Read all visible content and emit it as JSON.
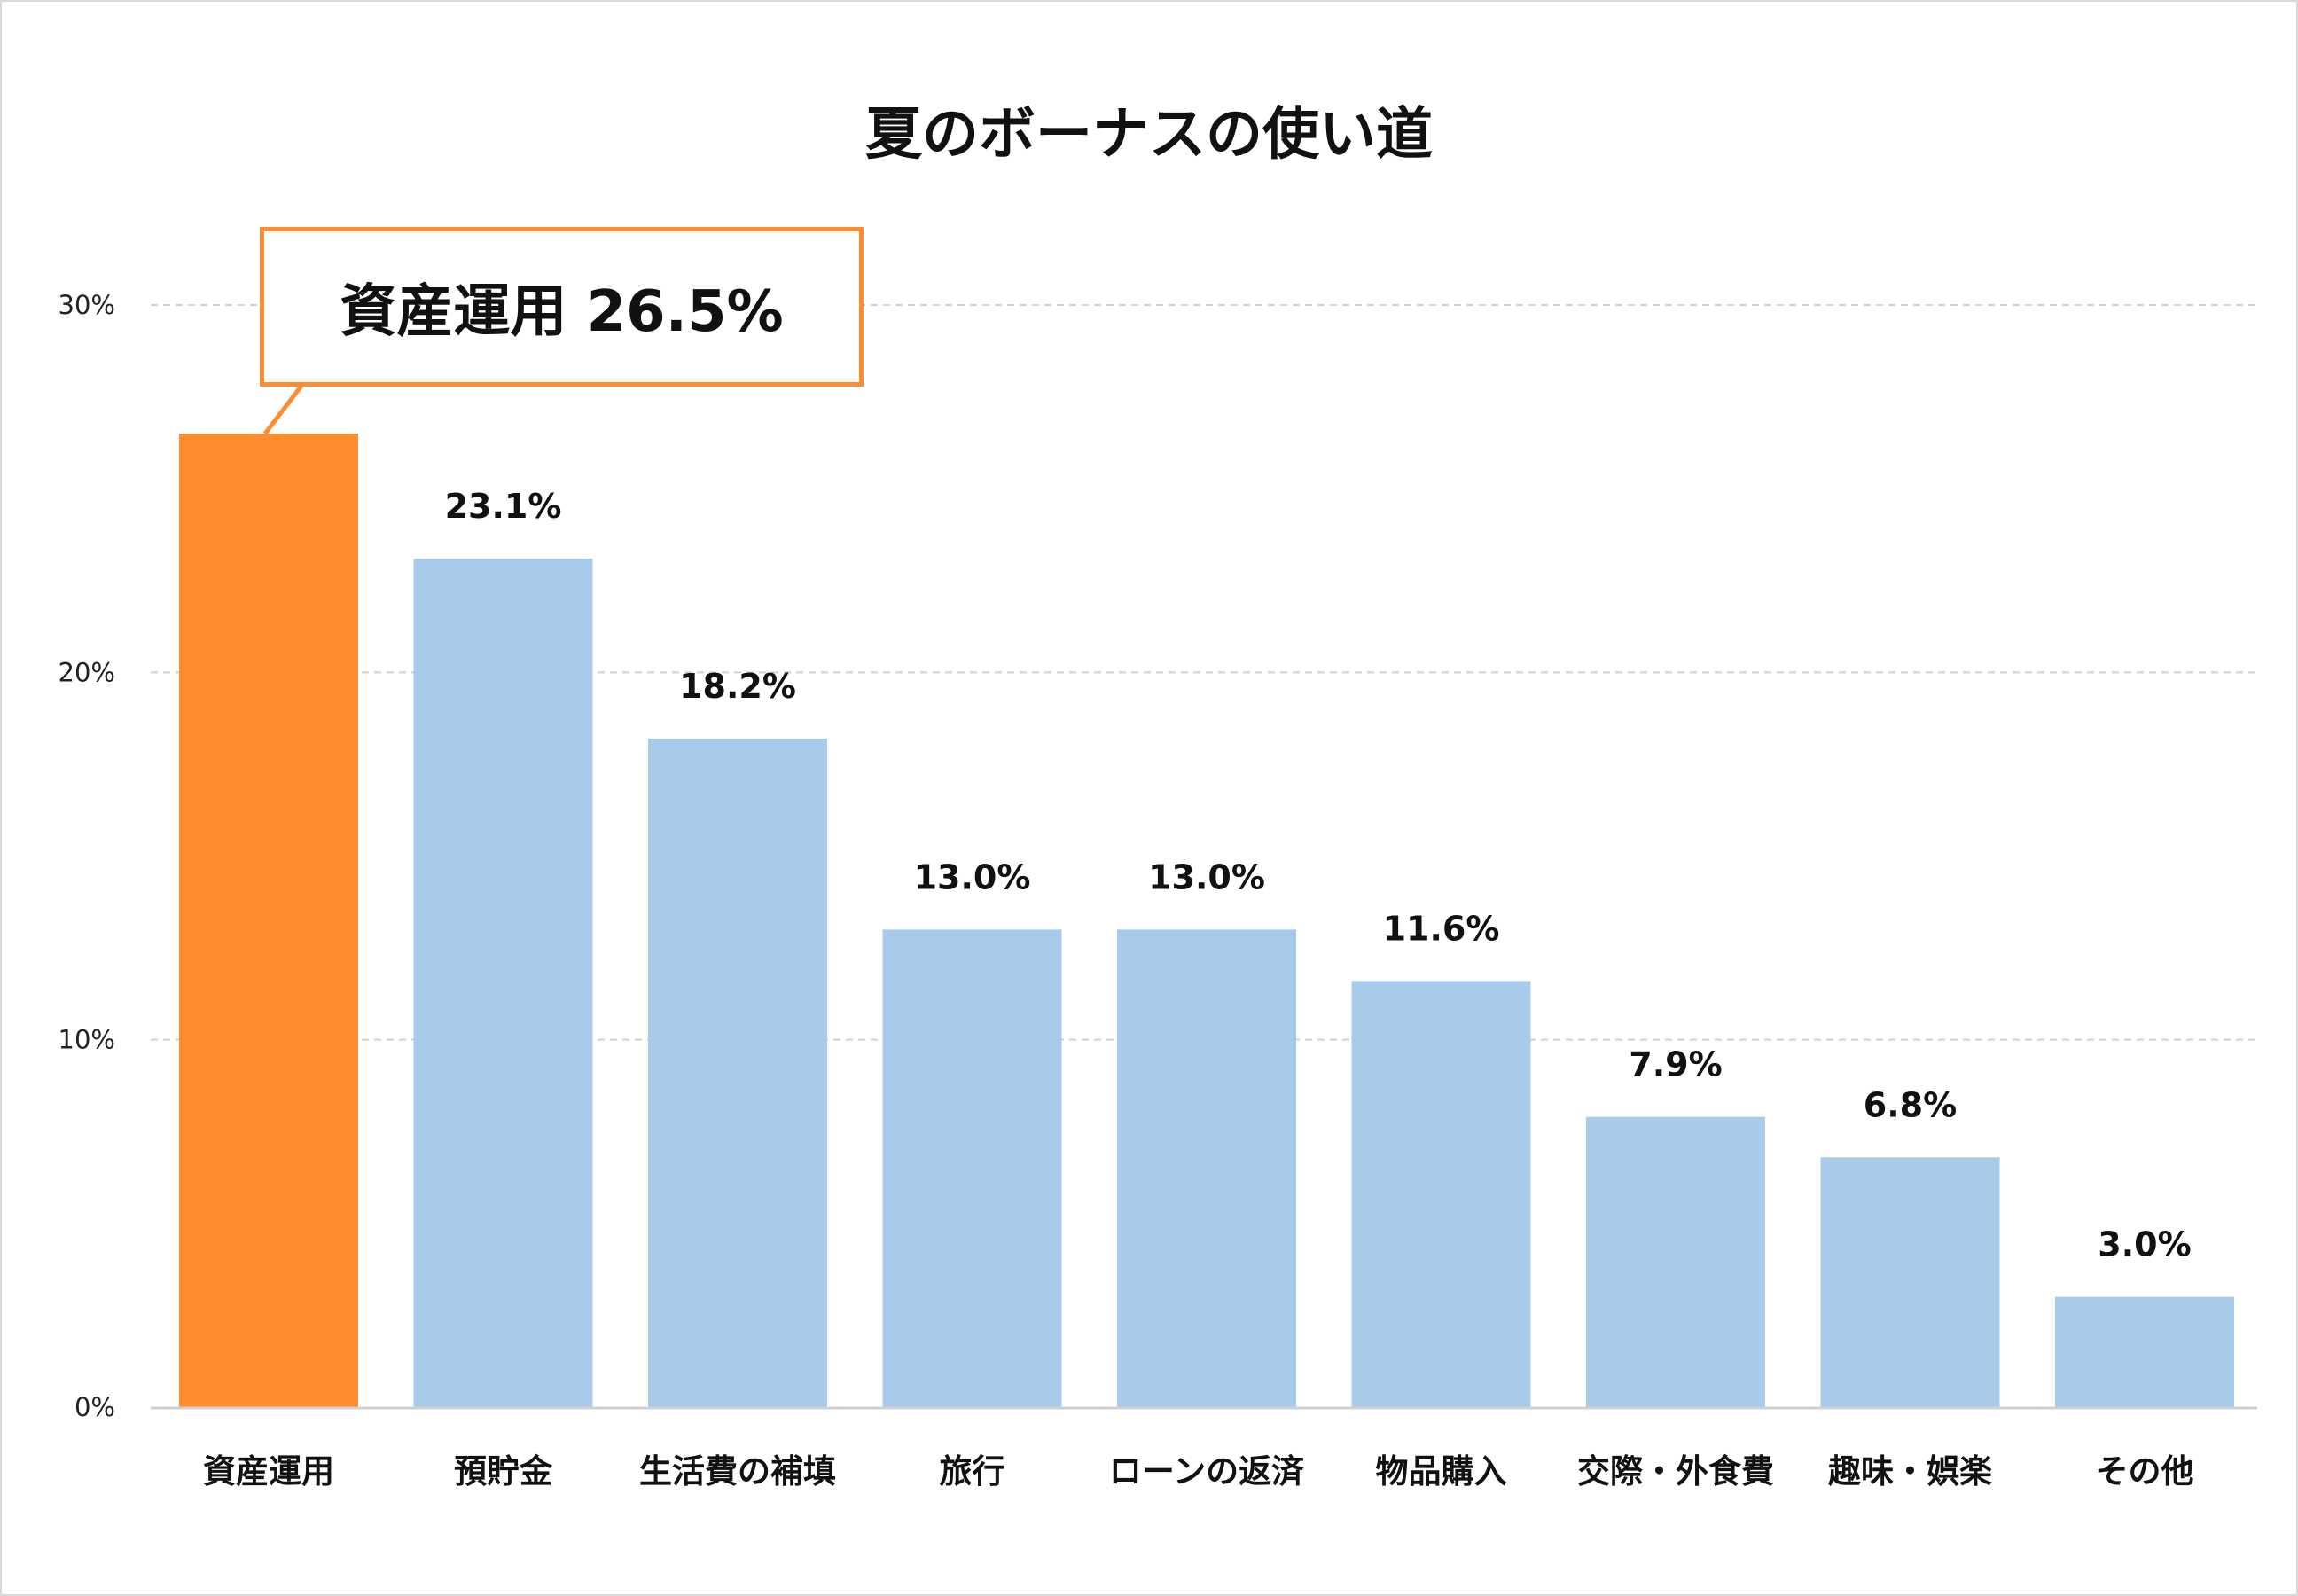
{
  "chart_data": {
    "type": "bar",
    "title": "夏のボーナスの使い道",
    "categories": [
      "資産運用",
      "預貯金",
      "生活費の補填",
      "旅行",
      "ローンの返済",
      "物品購入",
      "交際・外食費",
      "趣味・娯楽",
      "その他"
    ],
    "values": [
      26.5,
      23.1,
      18.2,
      13.0,
      13.0,
      11.6,
      7.9,
      6.8,
      3.0
    ],
    "value_labels": [
      "26.5%",
      "23.1%",
      "18.2%",
      "13.0%",
      "13.0%",
      "11.6%",
      "7.9%",
      "6.8%",
      "3.0%"
    ],
    "ylim": [
      0,
      30
    ],
    "yticks": [
      0,
      10,
      20,
      30
    ],
    "ytick_labels": [
      "0%",
      "10%",
      "20%",
      "30%"
    ],
    "grid": true,
    "highlight": {
      "index": 0,
      "label": "資産運用 26.5%"
    },
    "colors": {
      "highlight": "#FF8C2F",
      "default": "#A8CAEB",
      "grid": "#d0d0d0"
    }
  }
}
